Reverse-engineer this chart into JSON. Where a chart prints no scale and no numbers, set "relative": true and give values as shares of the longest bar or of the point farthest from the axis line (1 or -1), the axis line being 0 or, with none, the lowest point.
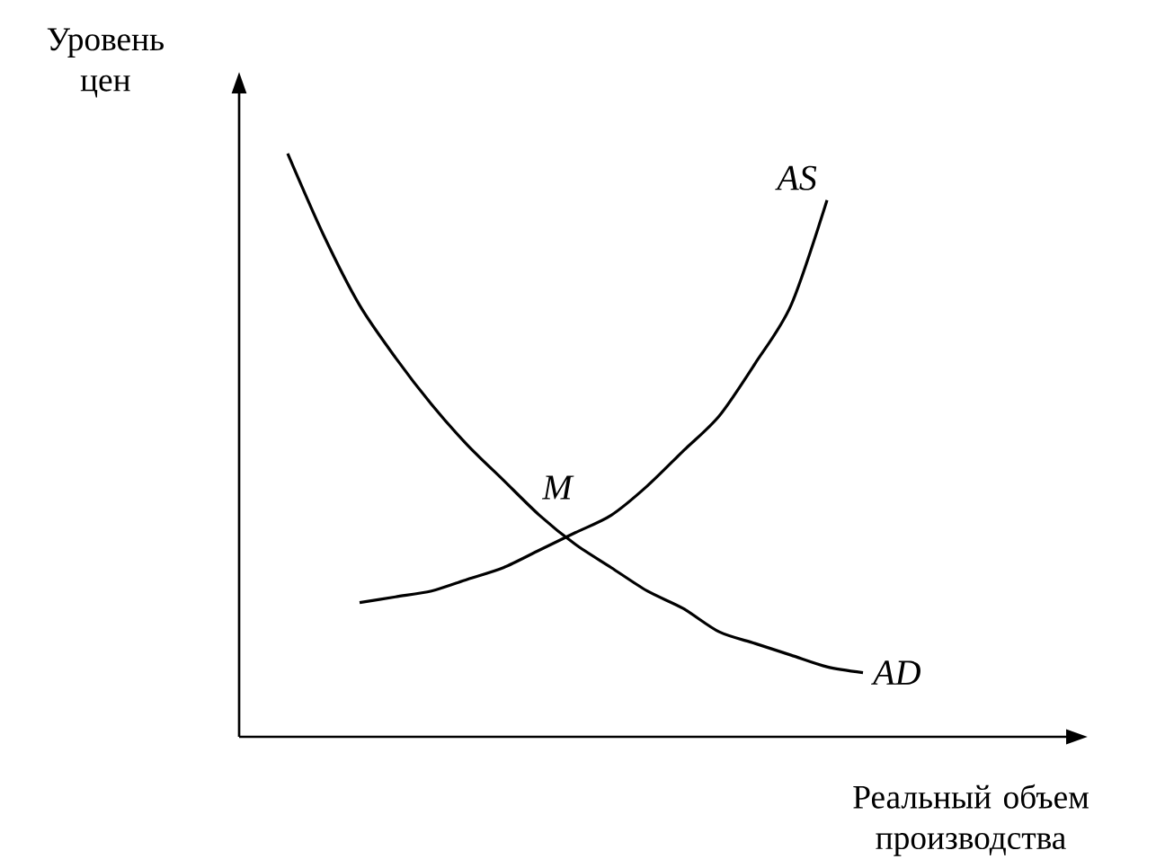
{
  "chart_data": {
    "type": "line",
    "relative": true,
    "xlabel": "Реальный объем производства",
    "ylabel": "Уровень цен",
    "categories": [
      null,
      null,
      null,
      null,
      null,
      null,
      null,
      null,
      null,
      null,
      null,
      null,
      null,
      null,
      null,
      null,
      null
    ],
    "series": [
      {
        "name": "AD",
        "color": "#000000",
        "values": [
          1,
          0.86,
          0.74,
          0.65,
          0.57,
          0.5,
          0.44,
          0.38,
          0.33,
          0.29,
          0.25,
          0.22,
          0.18,
          0.16,
          0.14,
          0.12,
          0.11
        ]
      },
      {
        "name": "AS",
        "color": "#000000",
        "values": [
          null,
          null,
          0.23,
          0.24,
          0.25,
          0.27,
          0.29,
          0.32,
          0.35,
          0.38,
          0.43,
          0.49,
          0.55,
          0.64,
          0.74,
          0.92,
          null
        ]
      }
    ],
    "annotations": [
      "M"
    ]
  }
}
